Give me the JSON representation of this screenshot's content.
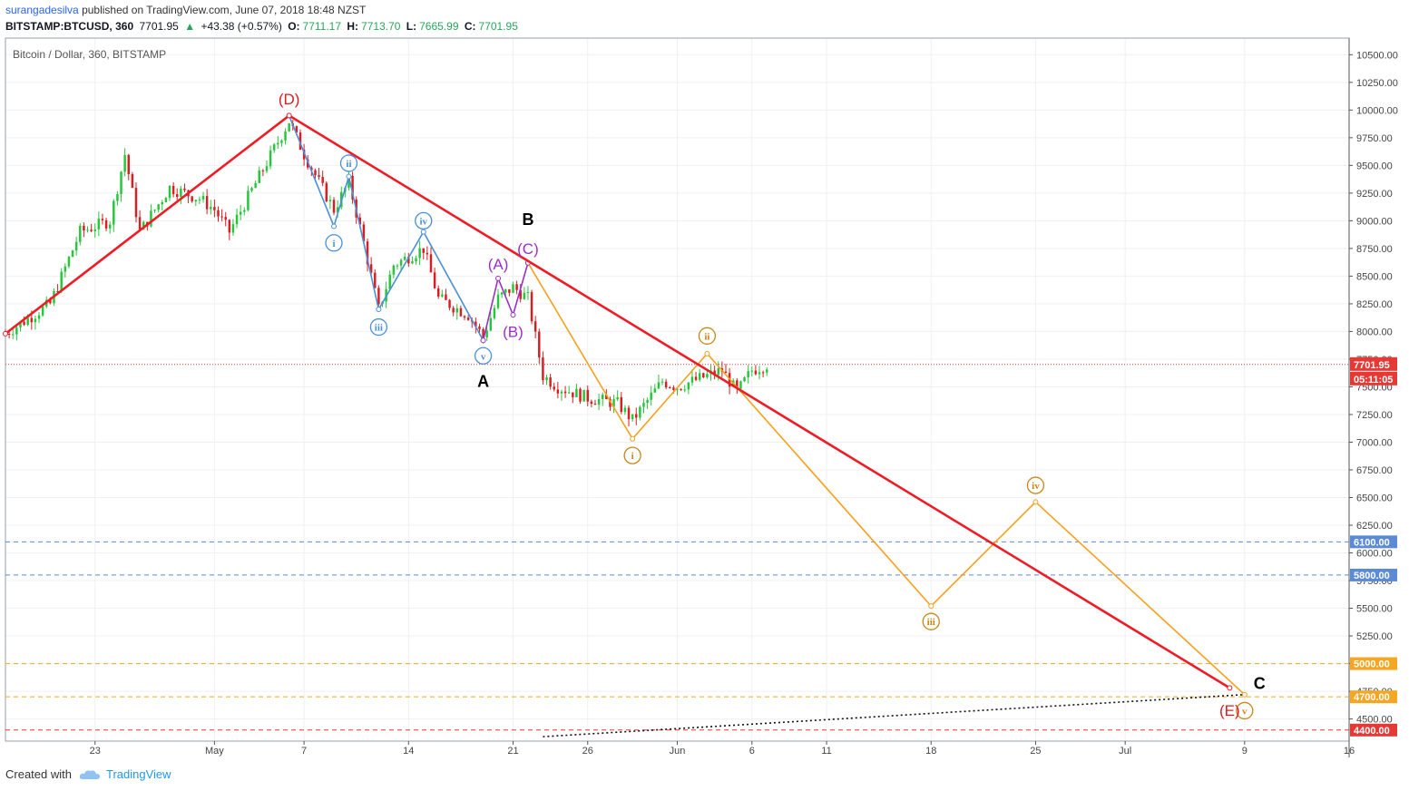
{
  "header": {
    "author": "surangadesilva",
    "published": "published on TradingView.com, June 07, 2018 18:48 NZST",
    "symbol": "BITSTAMP:BTCUSD, 360",
    "last": "7701.95",
    "change": "+43.38 (+0.57%)",
    "open_label": "O:",
    "open": "7711.17",
    "high_label": "H:",
    "high": "7713.70",
    "low_label": "L:",
    "low": "7665.99",
    "close_label": "C:",
    "close": "7701.95"
  },
  "plot_title": "Bitcoin / Dollar, 360, BITSTAMP",
  "footer": {
    "created_with": "Created with",
    "brand": "TradingView"
  },
  "colors": {
    "up": "#26c63a",
    "down": "#d81e22",
    "trend": "#ee1c25",
    "orange": "#f7a01d",
    "blue": "#4a90d9",
    "purple": "#9b30c8",
    "hline_blue": "#5b8bd6",
    "hline_orange": "#f5a623",
    "hline_red": "#e53935",
    "last_price": "#e53935"
  },
  "chart_data": {
    "type": "candlestick",
    "title": "Bitcoin / Dollar, 360, BITSTAMP",
    "ylim": [
      4300,
      10650
    ],
    "y_ticks": [
      4500,
      4750,
      5000,
      5250,
      5500,
      5750,
      6000,
      6250,
      6500,
      6750,
      7000,
      7250,
      7500,
      7750,
      8000,
      8250,
      8500,
      8750,
      9000,
      9250,
      9500,
      9750,
      10000,
      10250,
      10500
    ],
    "x_tick_labels": [
      "23",
      "May",
      "7",
      "14",
      "21",
      "26",
      "Jun",
      "6",
      "11",
      "18",
      "25",
      "Jul",
      "9",
      "16"
    ],
    "x_tick_dates": [
      "2018-04-23",
      "2018-05-01",
      "2018-05-07",
      "2018-05-14",
      "2018-05-21",
      "2018-05-26",
      "2018-06-01",
      "2018-06-06",
      "2018-06-11",
      "2018-06-18",
      "2018-06-25",
      "2018-07-01",
      "2018-07-09",
      "2018-07-16"
    ],
    "xlim": [
      "2018-04-17",
      "2018-07-16"
    ],
    "price_path": [
      [
        "2018-04-17",
        7980
      ],
      [
        "2018-04-20",
        8250
      ],
      [
        "2018-04-22",
        8900
      ],
      [
        "2018-04-24",
        9000
      ],
      [
        "2018-04-25",
        9600
      ],
      [
        "2018-04-26",
        8900
      ],
      [
        "2018-04-28",
        9300
      ],
      [
        "2018-04-30",
        9200
      ],
      [
        "2018-05-01",
        9100
      ],
      [
        "2018-05-02",
        8900
      ],
      [
        "2018-05-04",
        9400
      ],
      [
        "2018-05-05",
        9650
      ],
      [
        "2018-05-06",
        9900
      ],
      [
        "2018-05-07",
        9600
      ],
      [
        "2018-05-09",
        9100
      ],
      [
        "2018-05-10",
        9350
      ],
      [
        "2018-05-11",
        8800
      ],
      [
        "2018-05-12",
        8200
      ],
      [
        "2018-05-13",
        8600
      ],
      [
        "2018-05-15",
        8750
      ],
      [
        "2018-05-16",
        8300
      ],
      [
        "2018-05-18",
        8150
      ],
      [
        "2018-05-19",
        7950
      ],
      [
        "2018-05-20",
        8300
      ],
      [
        "2018-05-21",
        8400
      ],
      [
        "2018-05-22",
        8300
      ],
      [
        "2018-05-23",
        7600
      ],
      [
        "2018-05-24",
        7500
      ],
      [
        "2018-05-26",
        7400
      ],
      [
        "2018-05-28",
        7350
      ],
      [
        "2018-05-29",
        7200
      ],
      [
        "2018-05-31",
        7550
      ],
      [
        "2018-06-01",
        7500
      ],
      [
        "2018-06-03",
        7600
      ],
      [
        "2018-06-04",
        7650
      ],
      [
        "2018-06-05",
        7450
      ],
      [
        "2018-06-06",
        7650
      ],
      [
        "2018-06-07",
        7702
      ]
    ],
    "last_price": 7701.95,
    "countdown": "05:11:05",
    "horizontal_levels": [
      {
        "value": 6100,
        "label": "6100.00",
        "color": "#5b8bd6"
      },
      {
        "value": 5800,
        "label": "5800.00",
        "color": "#5b8bd6"
      },
      {
        "value": 5000,
        "label": "5000.00",
        "color": "#f5a623"
      },
      {
        "value": 4700,
        "label": "4700.00",
        "color": "#f5a623"
      },
      {
        "value": 4400,
        "label": "4400.00",
        "color": "#e53935"
      }
    ],
    "red_trendline": [
      [
        "2018-04-17",
        7980
      ],
      [
        "2018-05-06",
        9950
      ],
      [
        "2018-07-08",
        4780
      ]
    ],
    "blue_wave": [
      [
        "2018-05-06",
        9950
      ],
      [
        "2018-05-09",
        8950
      ],
      [
        "2018-05-10",
        9400
      ],
      [
        "2018-05-12",
        8200
      ],
      [
        "2018-05-15",
        8900
      ],
      [
        "2018-05-19",
        7920
      ]
    ],
    "purple_wave": [
      [
        "2018-05-19",
        7920
      ],
      [
        "2018-05-20",
        8480
      ],
      [
        "2018-05-21",
        8150
      ],
      [
        "2018-05-22",
        8620
      ]
    ],
    "orange_wave": [
      [
        "2018-05-22",
        8620
      ],
      [
        "2018-05-29",
        7030
      ],
      [
        "2018-06-03",
        7800
      ],
      [
        "2018-06-18",
        5520
      ],
      [
        "2018-06-25",
        6460
      ],
      [
        "2018-07-09",
        4720
      ]
    ],
    "support_dotted": [
      [
        "2018-05-23",
        4340
      ],
      [
        "2018-07-09",
        4720
      ]
    ],
    "wave_labels": [
      {
        "text": "(D)",
        "date": "2018-05-06",
        "price": 10100,
        "color": "#d81e22"
      },
      {
        "text": "ii",
        "date": "2018-05-10",
        "price": 9520,
        "color": "#4a90d9",
        "circle": true
      },
      {
        "text": "i",
        "date": "2018-05-09",
        "price": 8800,
        "color": "#4a90d9",
        "circle": true
      },
      {
        "text": "iv",
        "date": "2018-05-15",
        "price": 9000,
        "color": "#4a90d9",
        "circle": true
      },
      {
        "text": "iii",
        "date": "2018-05-12",
        "price": 8040,
        "color": "#4a90d9",
        "circle": true
      },
      {
        "text": "v",
        "date": "2018-05-19",
        "price": 7780,
        "color": "#4a90d9",
        "circle": true
      },
      {
        "text": "(A)",
        "date": "2018-05-20",
        "price": 8610,
        "color": "#9b30c8"
      },
      {
        "text": "(B)",
        "date": "2018-05-21",
        "price": 8000,
        "color": "#9b30c8"
      },
      {
        "text": "(C)",
        "date": "2018-05-22",
        "price": 8750,
        "color": "#9b30c8"
      },
      {
        "text": "A",
        "date": "2018-05-19",
        "price": 7550,
        "color": "#000000",
        "bold": true
      },
      {
        "text": "B",
        "date": "2018-05-22",
        "price": 9010,
        "color": "#000000",
        "bold": true
      },
      {
        "text": "ii",
        "date": "2018-06-03",
        "price": 7960,
        "color": "#c58717",
        "circle": true
      },
      {
        "text": "i",
        "date": "2018-05-29",
        "price": 6880,
        "color": "#c58717",
        "circle": true
      },
      {
        "text": "iii",
        "date": "2018-06-18",
        "price": 5380,
        "color": "#c58717",
        "circle": true
      },
      {
        "text": "iv",
        "date": "2018-06-25",
        "price": 6610,
        "color": "#c58717",
        "circle": true
      },
      {
        "text": "v",
        "date": "2018-07-09",
        "price": 4575,
        "color": "#c58717",
        "circle": true
      },
      {
        "text": "(E)",
        "date": "2018-07-08",
        "price": 4580,
        "color": "#d81e22"
      },
      {
        "text": "C",
        "date": "2018-07-10",
        "price": 4820,
        "color": "#000000",
        "bold": true
      }
    ]
  }
}
